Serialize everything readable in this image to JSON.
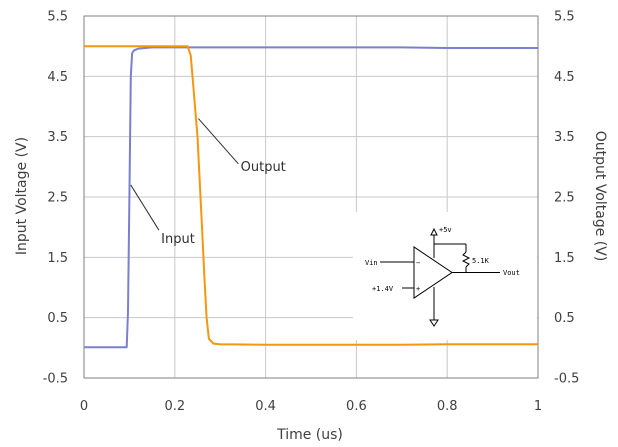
{
  "chart_data": {
    "type": "line",
    "xlabel": "Time (us)",
    "ylabel_left": "Input Voltage (V)",
    "ylabel_right": "Output Voltage (V)",
    "xlim": [
      0,
      1
    ],
    "ylim": [
      -0.5,
      5.5
    ],
    "grid": true,
    "x_ticks": [
      "0",
      "0.2",
      "0.4",
      "0.6",
      "0.8",
      "1"
    ],
    "y_ticks": [
      "-0.5",
      "0.5",
      "1.5",
      "2.5",
      "3.5",
      "4.5",
      "5.5"
    ],
    "series": [
      {
        "annotation": "Input",
        "color": "#7b7fcf",
        "x": [
          0,
          0.094,
          0.097,
          0.1,
          0.103,
          0.106,
          0.11,
          0.12,
          0.15,
          0.2,
          0.3,
          0.4,
          0.5,
          0.6,
          0.7,
          0.8,
          0.9,
          1.0
        ],
        "y": [
          0.01,
          0.01,
          0.6,
          2.5,
          4.5,
          4.88,
          4.93,
          4.96,
          4.98,
          4.98,
          4.98,
          4.98,
          4.98,
          4.98,
          4.98,
          4.97,
          4.97,
          4.97
        ]
      },
      {
        "annotation": "Output",
        "color": "#f5960f",
        "x": [
          0,
          0.1,
          0.2,
          0.228,
          0.235,
          0.24,
          0.25,
          0.26,
          0.265,
          0.27,
          0.275,
          0.285,
          0.3,
          0.4,
          0.5,
          0.6,
          0.7,
          0.8,
          0.9,
          1.0
        ],
        "y": [
          5.0,
          5.0,
          5.0,
          5.0,
          4.85,
          4.4,
          3.5,
          2.0,
          1.2,
          0.5,
          0.15,
          0.07,
          0.06,
          0.05,
          0.05,
          0.05,
          0.05,
          0.06,
          0.06,
          0.06
        ]
      }
    ],
    "annotations": [
      {
        "text": "Output",
        "x": 0.345,
        "y": 3.0
      },
      {
        "text": "Input",
        "x": 0.17,
        "y": 1.8
      }
    ],
    "inset_schematic": {
      "supply_label": "+5v",
      "resistor_label": "5.1K",
      "input_label": "Vin",
      "reference_label": "+1.4V",
      "output_label": "Vout",
      "minus_sign": "−",
      "plus_sign": "+"
    }
  }
}
